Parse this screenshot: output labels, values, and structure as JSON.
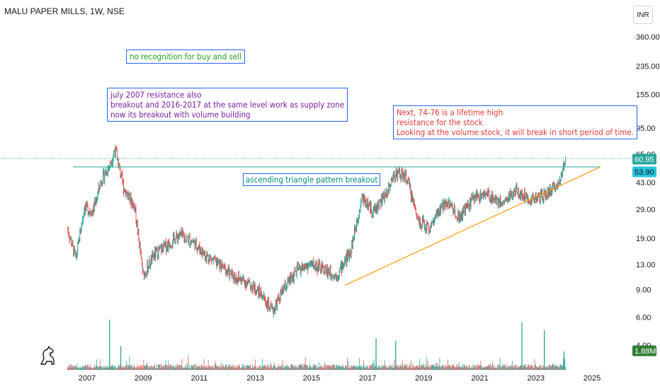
{
  "header": {
    "title": "MALU PAPER MILLS, 1W, NSE",
    "currency_button": "INR"
  },
  "annotations": {
    "no_recognition": "no recognition for buy and sell",
    "july_note": [
      "july 2007 resistance also",
      "breakout and 2016-2017 at the same level work as supply zone",
      "now its breakout with volume building"
    ],
    "pattern_label": "ascending triangle pattern breakout",
    "next_note": [
      "Next, 74-76 is a lifetime high",
      "resistance for the stock",
      "Looking at the volume stock, it will break in short period of time."
    ]
  },
  "chart_data": {
    "type": "candlestick",
    "title": "MALU PAPER MILLS, 1W, NSE",
    "y_scale": "log",
    "y_ticks": [
      {
        "label": "360.00",
        "value": 360
      },
      {
        "label": "235.00",
        "value": 235
      },
      {
        "label": "155.00",
        "value": 155
      },
      {
        "label": "95.00",
        "value": 95
      },
      {
        "label": "65.00",
        "value": 65
      },
      {
        "label": "43.00",
        "value": 43
      },
      {
        "label": "29.00",
        "value": 29
      },
      {
        "label": "19.00",
        "value": 19
      },
      {
        "label": "13.00",
        "value": 13
      },
      {
        "label": "9.00",
        "value": 9
      },
      {
        "label": "6.00",
        "value": 6
      },
      {
        "label": "4.00",
        "value": 4
      }
    ],
    "x_ticks": [
      "2007",
      "2009",
      "2011",
      "2013",
      "2015",
      "2017",
      "2019",
      "2021",
      "2023",
      "2025"
    ],
    "last_price": "60.95",
    "resistance_level": "53.90",
    "volume_label": "1.88M",
    "price_path": [
      [
        2006.3,
        22
      ],
      [
        2006.6,
        14
      ],
      [
        2006.9,
        30
      ],
      [
        2007.2,
        28
      ],
      [
        2007.5,
        44
      ],
      [
        2007.8,
        55
      ],
      [
        2008.0,
        70
      ],
      [
        2008.3,
        40
      ],
      [
        2008.7,
        30
      ],
      [
        2009.0,
        11
      ],
      [
        2009.4,
        15
      ],
      [
        2009.8,
        17
      ],
      [
        2010.3,
        20
      ],
      [
        2010.8,
        18
      ],
      [
        2011.2,
        15
      ],
      [
        2011.7,
        13
      ],
      [
        2012.2,
        11
      ],
      [
        2012.7,
        10
      ],
      [
        2013.2,
        8.5
      ],
      [
        2013.6,
        6.5
      ],
      [
        2014.0,
        9
      ],
      [
        2014.5,
        12
      ],
      [
        2015.0,
        13
      ],
      [
        2015.5,
        12
      ],
      [
        2015.9,
        11
      ],
      [
        2016.4,
        16
      ],
      [
        2016.8,
        35
      ],
      [
        2017.2,
        28
      ],
      [
        2017.6,
        35
      ],
      [
        2018.0,
        50
      ],
      [
        2018.4,
        46
      ],
      [
        2018.8,
        25
      ],
      [
        2019.2,
        22
      ],
      [
        2019.8,
        33
      ],
      [
        2020.3,
        26
      ],
      [
        2020.8,
        35
      ],
      [
        2021.3,
        36
      ],
      [
        2021.8,
        32
      ],
      [
        2022.3,
        38
      ],
      [
        2022.8,
        34
      ],
      [
        2023.3,
        35
      ],
      [
        2023.8,
        42
      ],
      [
        2024.05,
        61
      ]
    ],
    "trendline": {
      "from": [
        2016.2,
        9.6
      ],
      "to": [
        2025.3,
        53.9
      ]
    },
    "resistance_line": {
      "from": [
        2006.5,
        53.9
      ],
      "to": [
        2025.3,
        53.9
      ]
    },
    "volume_spikes": [
      {
        "x": 2007.8,
        "level": 0.95
      },
      {
        "x": 2008.2,
        "level": 0.45
      },
      {
        "x": 2017.3,
        "level": 0.6
      },
      {
        "x": 2018.0,
        "level": 0.55
      },
      {
        "x": 2022.5,
        "level": 0.9
      },
      {
        "x": 2023.3,
        "level": 0.75
      },
      {
        "x": 2024.0,
        "level": 0.35
      }
    ],
    "colors": {
      "up": "#26a69a",
      "down": "#ef5350",
      "trendline": "#ff9800",
      "resistance": "#26a69a",
      "last_price_tag": "#26a69a",
      "resistance_tag": "#26c6da",
      "volume_tag": "#2e7d32"
    }
  }
}
